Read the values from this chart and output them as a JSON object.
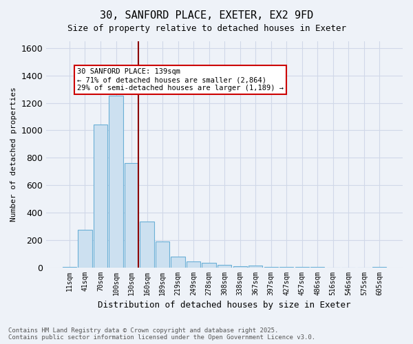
{
  "title_line1": "30, SANFORD PLACE, EXETER, EX2 9FD",
  "title_line2": "Size of property relative to detached houses in Exeter",
  "xlabel": "Distribution of detached houses by size in Exeter",
  "ylabel": "Number of detached properties",
  "bar_color": "#cce0f0",
  "bar_edge_color": "#6aafd6",
  "grid_color": "#d0d8e8",
  "background_color": "#eef2f8",
  "vline_color": "#8b0000",
  "vline_idx": 4,
  "annotation_text": "30 SANFORD PLACE: 139sqm\n← 71% of detached houses are smaller (2,864)\n29% of semi-detached houses are larger (1,189) →",
  "annotation_box_color": "#ffffff",
  "annotation_edge_color": "#cc0000",
  "footnote": "Contains HM Land Registry data © Crown copyright and database right 2025.\nContains public sector information licensed under the Open Government Licence v3.0.",
  "categories": [
    "11sqm",
    "41sqm",
    "70sqm",
    "100sqm",
    "130sqm",
    "160sqm",
    "189sqm",
    "219sqm",
    "249sqm",
    "278sqm",
    "308sqm",
    "338sqm",
    "367sqm",
    "397sqm",
    "427sqm",
    "457sqm",
    "486sqm",
    "516sqm",
    "546sqm",
    "575sqm",
    "605sqm"
  ],
  "values": [
    5,
    275,
    1040,
    1255,
    760,
    335,
    190,
    80,
    45,
    35,
    20,
    10,
    15,
    5,
    3,
    2,
    1,
    0,
    0,
    0,
    5
  ],
  "ylim": [
    0,
    1650
  ],
  "yticks": [
    0,
    200,
    400,
    600,
    800,
    1000,
    1200,
    1400,
    1600
  ]
}
